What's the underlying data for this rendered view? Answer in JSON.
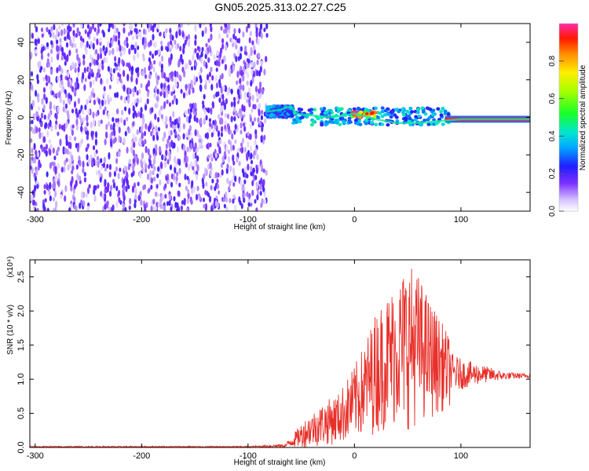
{
  "chart_data": [
    {
      "type": "heatmap",
      "title": "GN05.2025.313.02.27.C25",
      "xlabel": "Height of straight line (km)",
      "ylabel": "Frequency (Hz)",
      "xlim": [
        -305,
        165
      ],
      "ylim": [
        -50,
        50
      ],
      "x_ticks": [
        -300,
        -200,
        -100,
        0,
        100
      ],
      "y_ticks": [
        -40,
        -20,
        0,
        20,
        40
      ],
      "colorbar": {
        "label": "Normalized spectral amplitude",
        "range": [
          0,
          1
        ],
        "ticks": [
          "0.0",
          "0.2",
          "0.4",
          "0.6",
          "0.8"
        ],
        "tick_values": [
          0.0,
          0.2,
          0.4,
          0.6,
          0.8
        ]
      },
      "regions": [
        {
          "x_range": [
            -305,
            -82
          ],
          "freq_range": [
            -50,
            50
          ],
          "amplitude": 0.15,
          "pattern": "noise"
        },
        {
          "x_range": [
            -82,
            -58
          ],
          "freq_range": [
            0,
            6
          ],
          "amplitude": 0.3,
          "pattern": "dispersed"
        },
        {
          "x_range": [
            -58,
            90
          ],
          "freq_range": [
            -4,
            5
          ],
          "amplitude": 0.35,
          "pattern": "dispersed"
        },
        {
          "x_range": [
            -2,
            20
          ],
          "freq_range": [
            0,
            3
          ],
          "amplitude": 0.9,
          "pattern": "peak"
        },
        {
          "x_range": [
            85,
            165
          ],
          "freq_range": [
            -2,
            0
          ],
          "amplitude": 0.95,
          "pattern": "narrow-band"
        }
      ],
      "ridge": [
        [
          -82,
          3
        ],
        [
          -70,
          4
        ],
        [
          -60,
          6
        ],
        [
          -55,
          2
        ],
        [
          -40,
          1
        ],
        [
          -20,
          0
        ],
        [
          0,
          2
        ],
        [
          20,
          -1
        ],
        [
          40,
          -3
        ],
        [
          60,
          -3
        ],
        [
          80,
          -2
        ],
        [
          100,
          -1
        ],
        [
          120,
          -1
        ],
        [
          140,
          -1
        ],
        [
          165,
          -1
        ]
      ]
    },
    {
      "type": "line",
      "xlabel": "Height of straight line (km)",
      "ylabel": "SNR (10 * v/v)",
      "y_multiplier": "(x10⁴)",
      "xlim": [
        -305,
        165
      ],
      "ylim": [
        0,
        2.75
      ],
      "x_ticks": [
        -300,
        -200,
        -100,
        0,
        100
      ],
      "y_ticks": [
        "0.0",
        "0.5",
        "1.0",
        "1.5",
        "2.0",
        "2.5"
      ],
      "y_tick_values": [
        0.0,
        0.5,
        1.0,
        1.5,
        2.0,
        2.5
      ],
      "color": "#e8302a",
      "envelope": {
        "x": [
          -305,
          -100,
          -65,
          -55,
          -45,
          -30,
          -15,
          0,
          10,
          20,
          30,
          40,
          50,
          60,
          70,
          80,
          90,
          100,
          120,
          140,
          165
        ],
        "y_max": [
          0.02,
          0.02,
          0.05,
          0.25,
          0.45,
          0.65,
          0.8,
          1.2,
          1.55,
          2.0,
          2.25,
          2.45,
          2.75,
          2.55,
          2.2,
          1.9,
          1.6,
          1.45,
          1.3,
          1.15,
          1.1
        ],
        "y_min": [
          0.0,
          0.0,
          0.0,
          0.0,
          0.0,
          0.02,
          0.05,
          0.1,
          0.15,
          0.2,
          0.25,
          0.3,
          0.25,
          0.35,
          0.4,
          0.5,
          0.6,
          0.7,
          0.85,
          0.95,
          1.0
        ]
      }
    }
  ]
}
